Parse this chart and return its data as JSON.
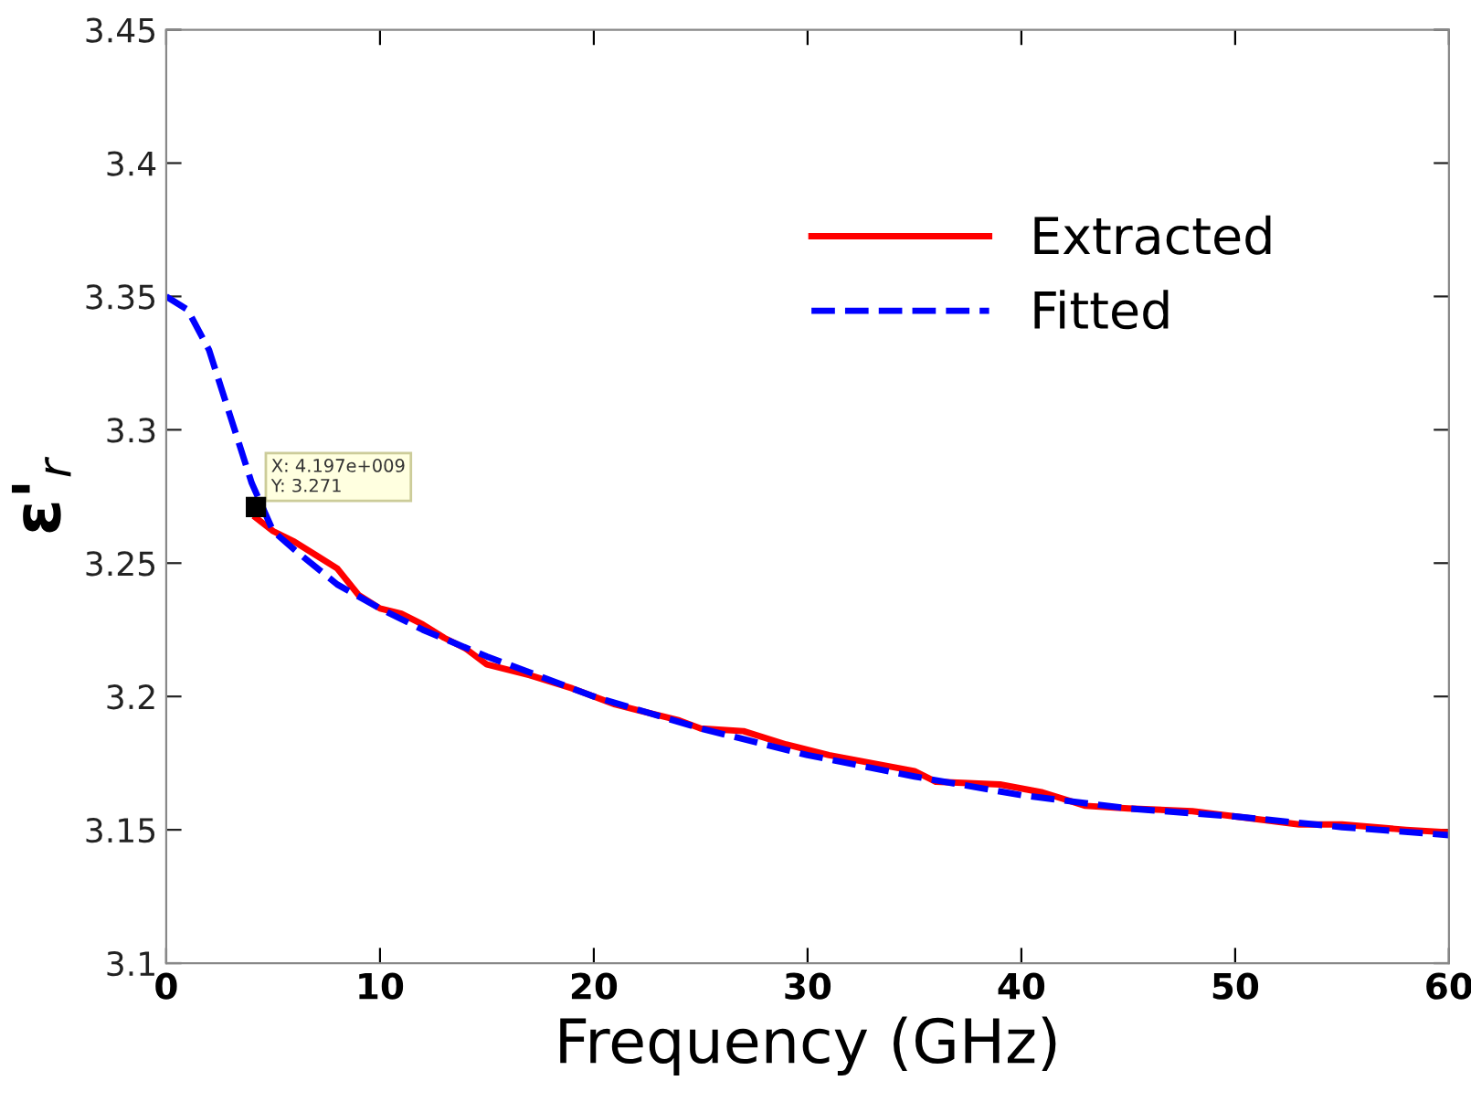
{
  "chart_data": {
    "type": "line",
    "xlabel": "Frequency (GHz)",
    "ylabel": "ε'$_{r}$",
    "xlim": [
      0,
      60
    ],
    "xticks": [
      0,
      10,
      20,
      30,
      40,
      50,
      60
    ],
    "ylim": [
      3.1,
      3.45
    ],
    "yticks": [
      3.1,
      3.15,
      3.2,
      3.25,
      3.3,
      3.35,
      3.4,
      3.45
    ],
    "grid": false,
    "legend": "top right",
    "series": [
      {
        "name": "Extracted",
        "color": "#ff0000",
        "line_style": "solid",
        "x": [
          4.2,
          5,
          6,
          7,
          8,
          9,
          10,
          11,
          12,
          13,
          14,
          15,
          17,
          19,
          21,
          22,
          24,
          25,
          27,
          29,
          31,
          33,
          35,
          36,
          39,
          41,
          43,
          45,
          48,
          50,
          53,
          55,
          58,
          60
        ],
        "values": [
          3.267,
          3.262,
          3.258,
          3.253,
          3.248,
          3.238,
          3.233,
          3.231,
          3.227,
          3.222,
          3.218,
          3.212,
          3.208,
          3.203,
          3.197,
          3.195,
          3.191,
          3.188,
          3.187,
          3.182,
          3.178,
          3.175,
          3.172,
          3.168,
          3.167,
          3.164,
          3.159,
          3.158,
          3.157,
          3.155,
          3.152,
          3.152,
          3.15,
          3.149
        ]
      },
      {
        "name": "Fitted",
        "color": "#0000ff",
        "line_style": "dashed",
        "x": [
          0,
          1,
          2,
          3,
          4,
          5,
          6,
          8,
          10,
          12,
          15,
          20,
          25,
          30,
          35,
          40,
          45,
          50,
          55,
          60
        ],
        "values": [
          3.35,
          3.345,
          3.33,
          3.305,
          3.28,
          3.262,
          3.255,
          3.242,
          3.233,
          3.225,
          3.215,
          3.2,
          3.188,
          3.178,
          3.17,
          3.163,
          3.158,
          3.155,
          3.151,
          3.148
        ]
      }
    ],
    "annotations": [
      {
        "text": "X: 4.197e+009\nY: 3.271",
        "x": 4.197,
        "y": 3.271
      }
    ]
  }
}
